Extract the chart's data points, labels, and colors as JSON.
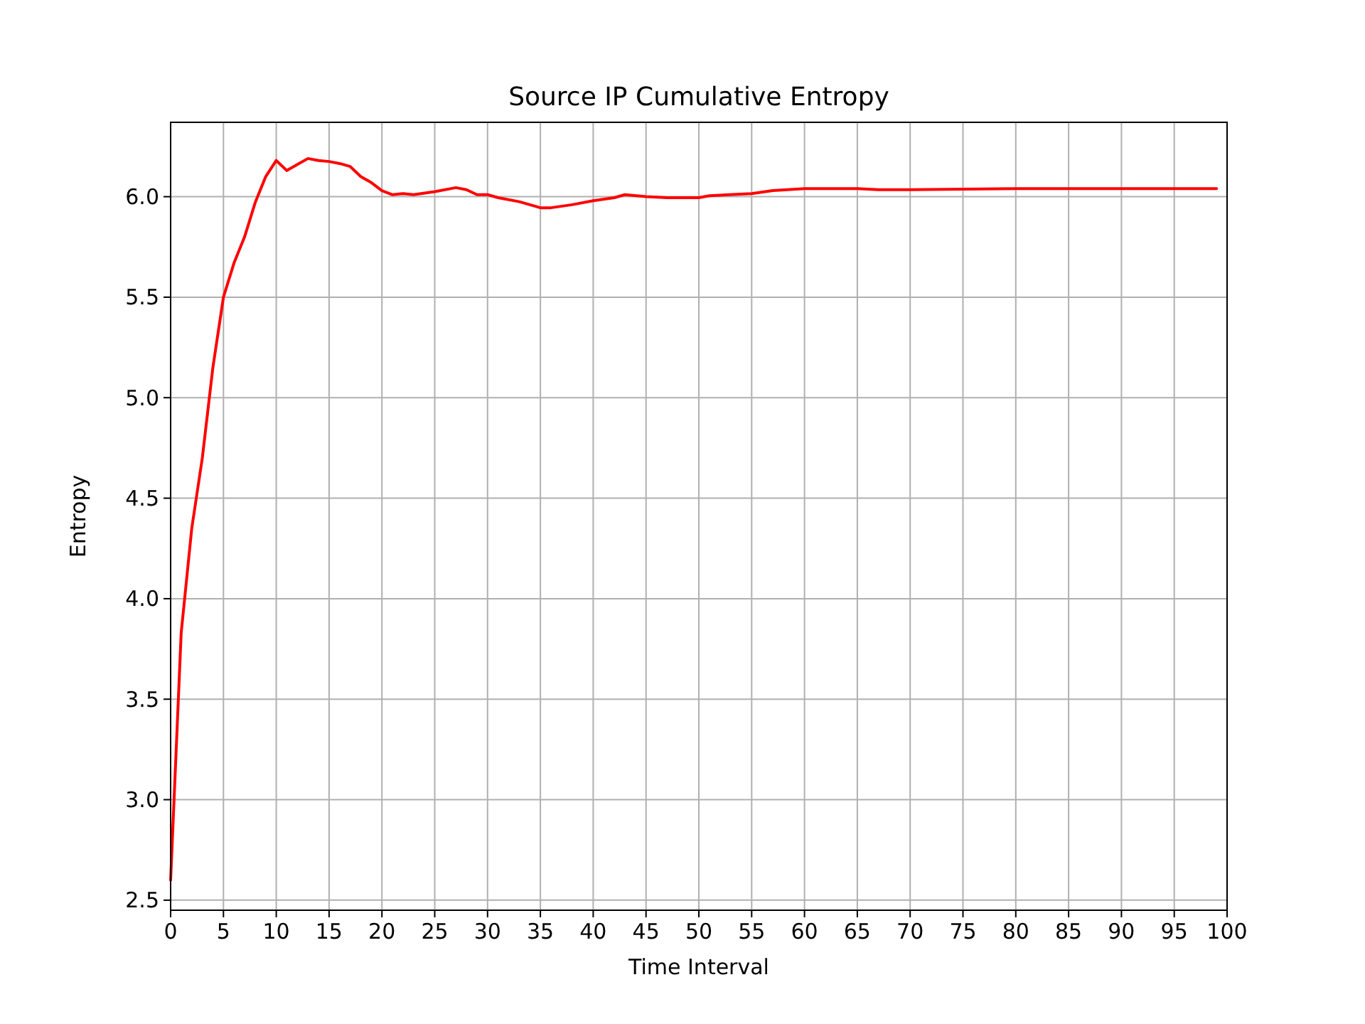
{
  "chart_data": {
    "type": "line",
    "title": "Source IP Cumulative Entropy",
    "xlabel": "Time Interval",
    "ylabel": "Entropy",
    "xlim": [
      0,
      100
    ],
    "xticks": [
      0,
      5,
      10,
      15,
      20,
      25,
      30,
      35,
      40,
      45,
      50,
      55,
      60,
      65,
      70,
      75,
      80,
      85,
      90,
      95,
      100
    ],
    "ylim": [
      2.45,
      6.37
    ],
    "yticks": [
      {
        "value": 2.5,
        "label": "2.5"
      },
      {
        "value": 3,
        "label": "3.0"
      },
      {
        "value": 3.5,
        "label": "3.5"
      },
      {
        "value": 4,
        "label": "4.0"
      },
      {
        "value": 4.5,
        "label": "4.5"
      },
      {
        "value": 5,
        "label": "5.0"
      },
      {
        "value": 5.5,
        "label": "5.5"
      },
      {
        "value": 6,
        "label": "6.0"
      }
    ],
    "grid": true,
    "marker": "none",
    "line_style": "solid",
    "series": [
      {
        "color": "#ff0000",
        "x": [
          0,
          1,
          2,
          3,
          4,
          5,
          6,
          7,
          8,
          9,
          10,
          11,
          12,
          13,
          14,
          15,
          16,
          17,
          18,
          19,
          20,
          21,
          22,
          23,
          25,
          27,
          28,
          29,
          30,
          31,
          33,
          35,
          36,
          38,
          40,
          42,
          43,
          45,
          47,
          50,
          51,
          55,
          57,
          60,
          65,
          67,
          70,
          80,
          90,
          99
        ],
        "values": [
          2.6,
          3.83,
          4.35,
          4.7,
          5.15,
          5.5,
          5.67,
          5.8,
          5.97,
          6.1,
          6.18,
          6.13,
          6.16,
          6.19,
          6.18,
          6.175,
          6.165,
          6.15,
          6.1,
          6.07,
          6.03,
          6.01,
          6.015,
          6.01,
          6.025,
          6.045,
          6.035,
          6.01,
          6.01,
          5.995,
          5.975,
          5.945,
          5.945,
          5.96,
          5.98,
          5.995,
          6.01,
          6.0,
          5.995,
          5.995,
          6.005,
          6.015,
          6.03,
          6.04,
          6.04,
          6.035,
          6.035,
          6.04,
          6.04,
          6.04
        ]
      }
    ]
  }
}
